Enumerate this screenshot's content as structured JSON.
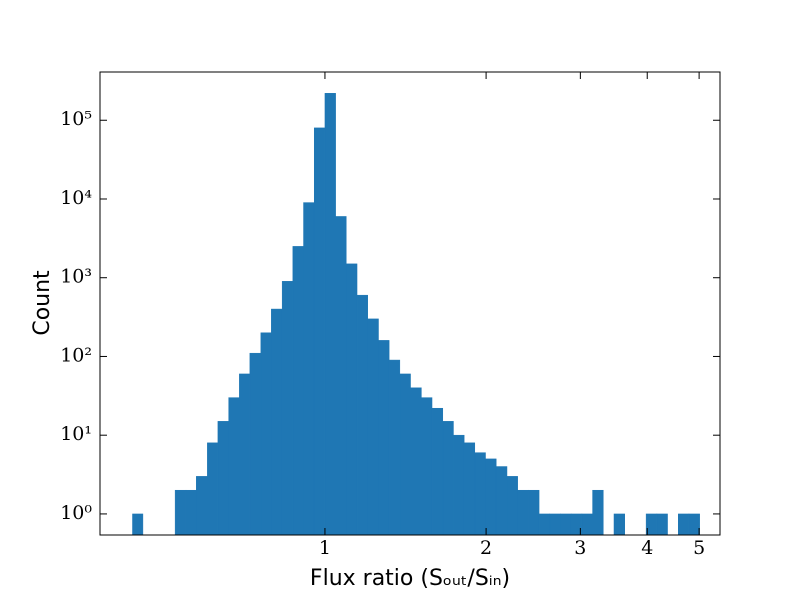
{
  "chart_data": {
    "type": "histogram",
    "xlabel": "Flux ratio (Sₒᵤₜ/Sᵢₙ)",
    "ylabel": "Count",
    "color": "#1f77b4",
    "xscale": "log",
    "yscale": "log",
    "xlim": [
      0.38,
      5.47
    ],
    "ylim": [
      0.54,
      410000
    ],
    "xticks": [
      1,
      2,
      3,
      4,
      5
    ],
    "yticks": [
      {
        "value": 1,
        "label": "10⁰"
      },
      {
        "value": 10,
        "label": "10¹"
      },
      {
        "value": 100,
        "label": "10²"
      },
      {
        "value": 1000,
        "label": "10³"
      },
      {
        "value": 10000,
        "label": "10⁴"
      },
      {
        "value": 100000,
        "label": "10⁵"
      }
    ],
    "bins": [
      0.437,
      0.457,
      0.479,
      0.501,
      0.525,
      0.55,
      0.575,
      0.603,
      0.631,
      0.661,
      0.692,
      0.724,
      0.759,
      0.794,
      0.832,
      0.871,
      0.912,
      0.955,
      1.0,
      1.047,
      1.096,
      1.148,
      1.202,
      1.259,
      1.318,
      1.38,
      1.445,
      1.514,
      1.585,
      1.66,
      1.738,
      1.82,
      1.905,
      1.995,
      2.089,
      2.188,
      2.291,
      2.399,
      2.512,
      2.63,
      2.754,
      2.884,
      3.02,
      3.162,
      3.311,
      3.467,
      3.631,
      3.802,
      3.981,
      4.169,
      4.365,
      4.571,
      4.786,
      5.012
    ],
    "values": [
      1,
      0,
      0,
      0,
      2,
      2,
      3,
      8,
      15,
      30,
      60,
      110,
      200,
      400,
      900,
      2500,
      9000,
      80000,
      220000,
      6000,
      1500,
      600,
      300,
      160,
      90,
      60,
      40,
      30,
      22,
      15,
      10,
      8,
      6,
      5,
      4,
      3,
      2,
      2,
      1,
      1,
      1,
      1,
      1,
      2,
      0,
      1,
      0,
      0,
      1,
      1,
      0,
      1,
      1
    ]
  }
}
